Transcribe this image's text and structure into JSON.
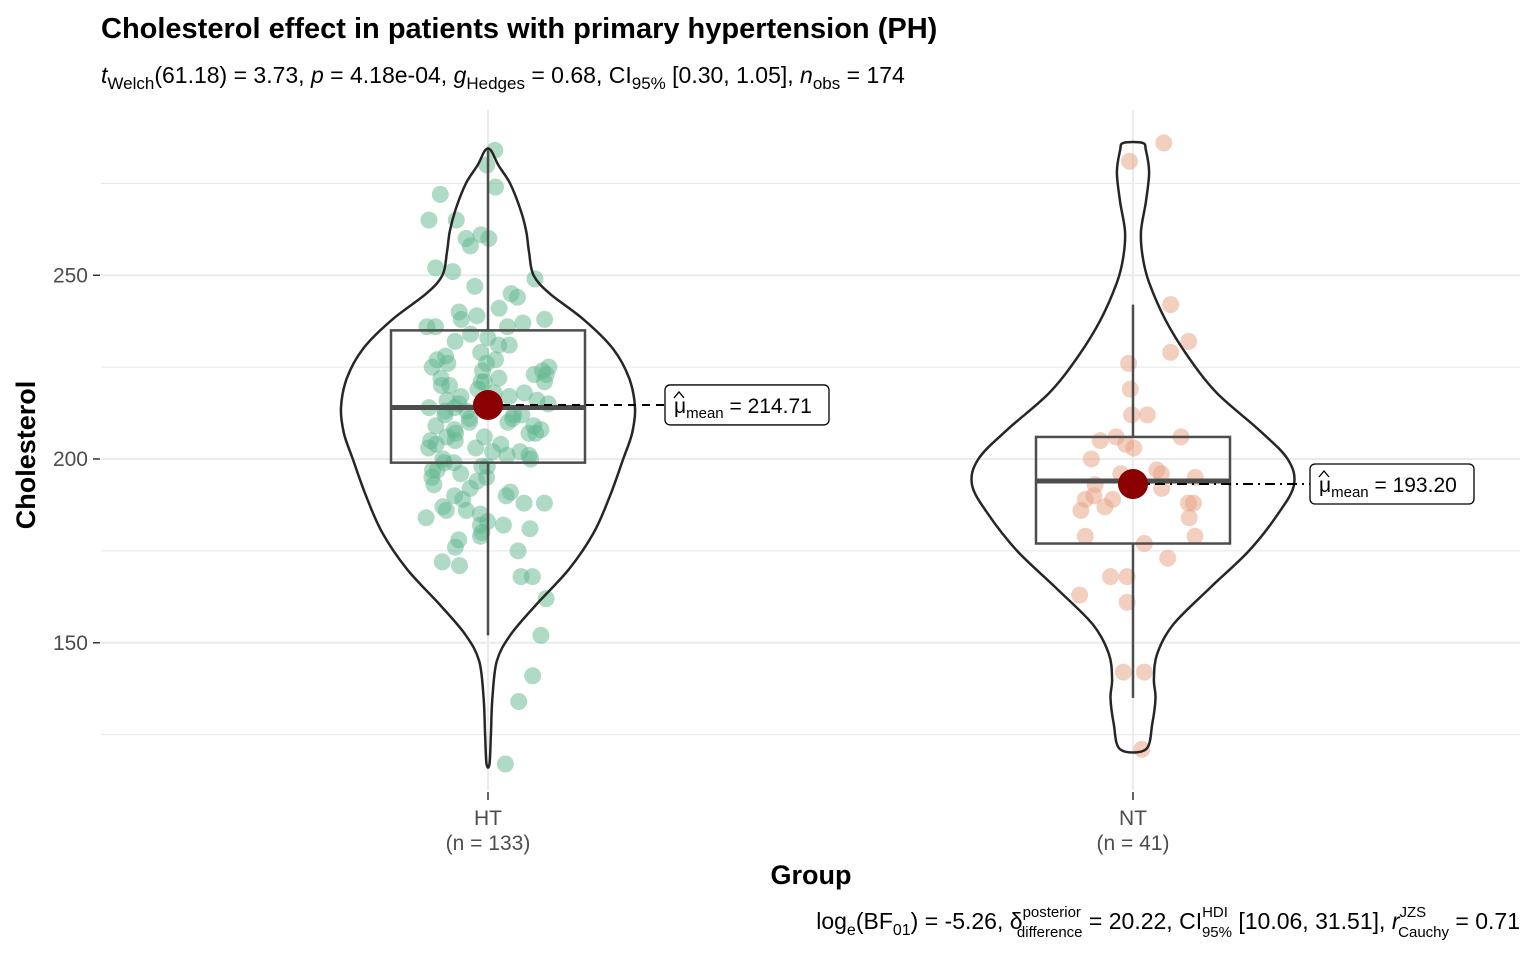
{
  "chart_data": {
    "type": "violin",
    "title": "Cholesterol effect in patients with primary hypertension (PH)",
    "subtitle": {
      "t_prefix": "t",
      "t_sub": "Welch",
      "t_val": "(61.18) = 3.73, ",
      "p_prefix": "p",
      "p_val": " = 4.18e-04, ",
      "g_prefix": "g",
      "g_sub": "Hedges",
      "g_val": " = 0.68, CI",
      "ci_sub": "95%",
      "ci_val": " [0.30, 1.05], ",
      "n_prefix": "n",
      "n_sub": "obs",
      "n_val": " = 174"
    },
    "caption": {
      "log_prefix": "log",
      "log_sub": "e",
      "bf": "(BF",
      "bf_sub": "01",
      "bf_val": ") = -5.26, ",
      "delta": "δ",
      "delta_sup": "posterior",
      "delta_sub": "difference",
      "delta_val": " = 20.22, CI",
      "hdi_sup": "HDI",
      "hdi_sub": "95%",
      "hdi_val": " [10.06, 31.51], ",
      "r_prefix": "r",
      "r_sup": "JZS",
      "r_sub": "Cauchy",
      "r_val": " = 0.71"
    },
    "xlabel": "Group",
    "ylabel": "Cholesterol",
    "ylim": [
      110,
      293
    ],
    "yticks": [
      150,
      200,
      250
    ],
    "grid": true,
    "groups": [
      {
        "name": "HT",
        "n_label": "(n = 133)",
        "color": "#5fb58e",
        "mean": 214.71,
        "mean_label": "= 214.71",
        "mean_sym": "μ",
        "mean_sub": "mean",
        "box": {
          "q1": 199,
          "median": 214,
          "q3": 235,
          "whisker_low": 152,
          "whisker_high": 284
        },
        "violin": [
          [
            117,
            0.01
          ],
          [
            125,
            0.02
          ],
          [
            135,
            0.03
          ],
          [
            145,
            0.06
          ],
          [
            152,
            0.15
          ],
          [
            160,
            0.32
          ],
          [
            170,
            0.55
          ],
          [
            180,
            0.72
          ],
          [
            190,
            0.83
          ],
          [
            200,
            0.92
          ],
          [
            207,
            0.98
          ],
          [
            214,
            1.0
          ],
          [
            222,
            0.96
          ],
          [
            230,
            0.85
          ],
          [
            238,
            0.65
          ],
          [
            245,
            0.42
          ],
          [
            250,
            0.31
          ],
          [
            256,
            0.28
          ],
          [
            262,
            0.26
          ],
          [
            268,
            0.22
          ],
          [
            275,
            0.15
          ],
          [
            280,
            0.07
          ],
          [
            284,
            0.02
          ]
        ],
        "points": [
          280,
          274,
          272,
          265,
          261,
          260,
          252,
          249,
          241,
          239,
          238,
          237,
          236,
          236,
          233,
          232,
          231,
          228,
          227,
          226,
          226,
          225,
          224,
          223,
          222,
          221,
          221,
          220,
          219,
          218,
          217,
          217,
          216,
          215,
          215,
          214,
          214,
          213,
          212,
          212,
          211,
          210,
          209,
          208,
          207,
          207,
          206,
          205,
          204,
          203,
          202,
          201,
          200,
          199,
          198,
          197,
          195,
          194,
          191,
          190,
          188,
          186,
          185,
          183,
          182,
          181,
          180,
          179,
          178,
          176,
          175,
          172,
          171,
          168,
          168,
          162,
          152,
          141,
          134,
          117,
          284,
          265,
          260,
          258,
          251,
          247,
          245,
          244,
          240,
          238,
          236,
          234,
          231,
          229,
          227,
          225,
          224,
          223,
          222,
          221,
          220,
          218,
          216,
          215,
          214,
          213,
          212,
          211,
          210,
          209,
          208,
          207,
          206,
          205,
          204,
          203,
          202,
          201,
          200,
          199,
          198,
          197,
          196,
          195,
          193,
          192,
          190,
          189,
          188,
          187,
          186,
          184,
          182
        ]
      },
      {
        "name": "NT",
        "n_label": "(n = 41)",
        "color": "#e7a082",
        "mean": 193.2,
        "mean_label": "= 193.20",
        "mean_sym": "μ",
        "mean_sub": "mean",
        "box": {
          "q1": 177,
          "median": 194,
          "q3": 206,
          "whisker_low": 135,
          "whisker_high": 242
        },
        "violin": [
          [
            121,
            0.08
          ],
          [
            128,
            0.12
          ],
          [
            135,
            0.14
          ],
          [
            140,
            0.13
          ],
          [
            147,
            0.15
          ],
          [
            155,
            0.25
          ],
          [
            165,
            0.48
          ],
          [
            175,
            0.72
          ],
          [
            185,
            0.9
          ],
          [
            193,
            1.0
          ],
          [
            200,
            0.96
          ],
          [
            208,
            0.78
          ],
          [
            218,
            0.52
          ],
          [
            228,
            0.34
          ],
          [
            238,
            0.2
          ],
          [
            248,
            0.1
          ],
          [
            255,
            0.06
          ],
          [
            262,
            0.05
          ],
          [
            270,
            0.08
          ],
          [
            278,
            0.1
          ],
          [
            284,
            0.08
          ],
          [
            286,
            0.06
          ]
        ],
        "points": [
          286,
          281,
          242,
          232,
          229,
          226,
          219,
          212,
          212,
          206,
          206,
          205,
          204,
          203,
          200,
          197,
          196,
          196,
          195,
          194,
          193,
          192,
          190,
          189,
          189,
          188,
          188,
          187,
          186,
          184,
          179,
          179,
          177,
          173,
          168,
          168,
          163,
          161,
          142,
          142,
          121
        ]
      }
    ]
  }
}
